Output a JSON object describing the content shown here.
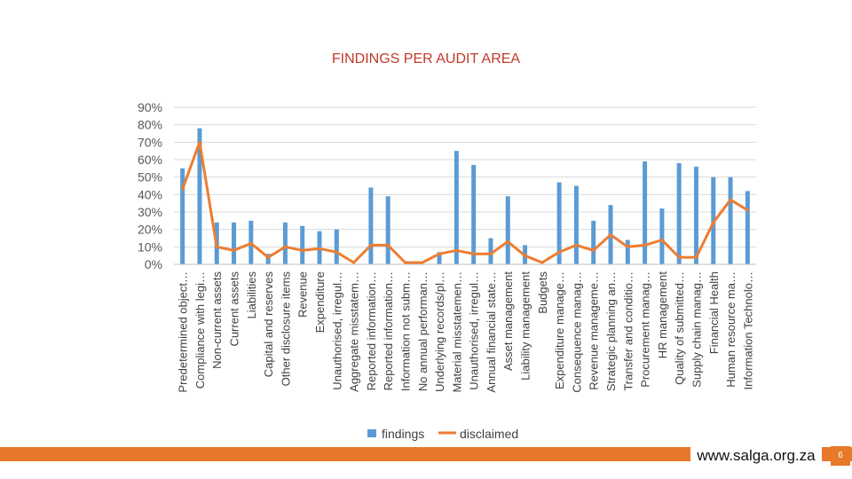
{
  "colors": {
    "findings": "#5b9bd5",
    "disclaimed": "#ed7d31",
    "accent": "#e8792a",
    "title": "#c0392b"
  },
  "chart_data": {
    "type": "bar",
    "title": "FINDINGS PER AUDIT AREA",
    "xlabel": "",
    "ylabel": "",
    "ylim": [
      0,
      90
    ],
    "yticks": [
      "90%",
      "80%",
      "70%",
      "60%",
      "50%",
      "40%",
      "30%",
      "20%",
      "10%",
      "0%"
    ],
    "grid": true,
    "legend_position": "bottom",
    "categories": [
      "Predetermined object…",
      "Compliance with legi…",
      "Non-current assets",
      "Current assets",
      "Liabilities",
      "Capital and reserves",
      "Other disclosure items",
      "Revenue",
      "Expenditure",
      "Unauthorised, irregul…",
      "Aggregate misstatem…",
      "Reported information…",
      "Reported information…",
      "Information not subm…",
      "No annual performan…",
      "Underlying records/pl…",
      "Material misstatemen…",
      "Unauthorised, irregul…",
      "Annual financial state…",
      "Asset management",
      "Liability management",
      "Budgets",
      "Expenditure manage…",
      "Consequence manag…",
      "Revenue manageme…",
      "Strategic planning an…",
      "Transfer and conditio…",
      "Procurement manag…",
      "HR management",
      "Quality of submitted…",
      "Supply chain manag…",
      "Financial Health",
      "Human resource ma…",
      "Information Technolo…"
    ],
    "series": [
      {
        "name": "findings",
        "type": "bar",
        "values": [
          55,
          78,
          24,
          24,
          25,
          6,
          24,
          22,
          19,
          20,
          0,
          44,
          39,
          0,
          0,
          7,
          65,
          57,
          15,
          39,
          11,
          0,
          47,
          45,
          25,
          34,
          14,
          59,
          32,
          58,
          56,
          50,
          50,
          42
        ]
      },
      {
        "name": "disclaimed",
        "type": "line",
        "values": [
          43,
          70,
          10,
          8,
          12,
          4,
          10,
          8,
          9,
          7,
          1,
          11,
          11,
          1,
          1,
          6,
          8,
          6,
          6,
          13,
          5,
          1,
          7,
          11,
          8,
          17,
          10,
          11,
          14,
          4,
          4,
          24,
          37,
          31
        ]
      }
    ]
  },
  "footer": {
    "url": "www.salga.org.za",
    "page_number": "6"
  }
}
